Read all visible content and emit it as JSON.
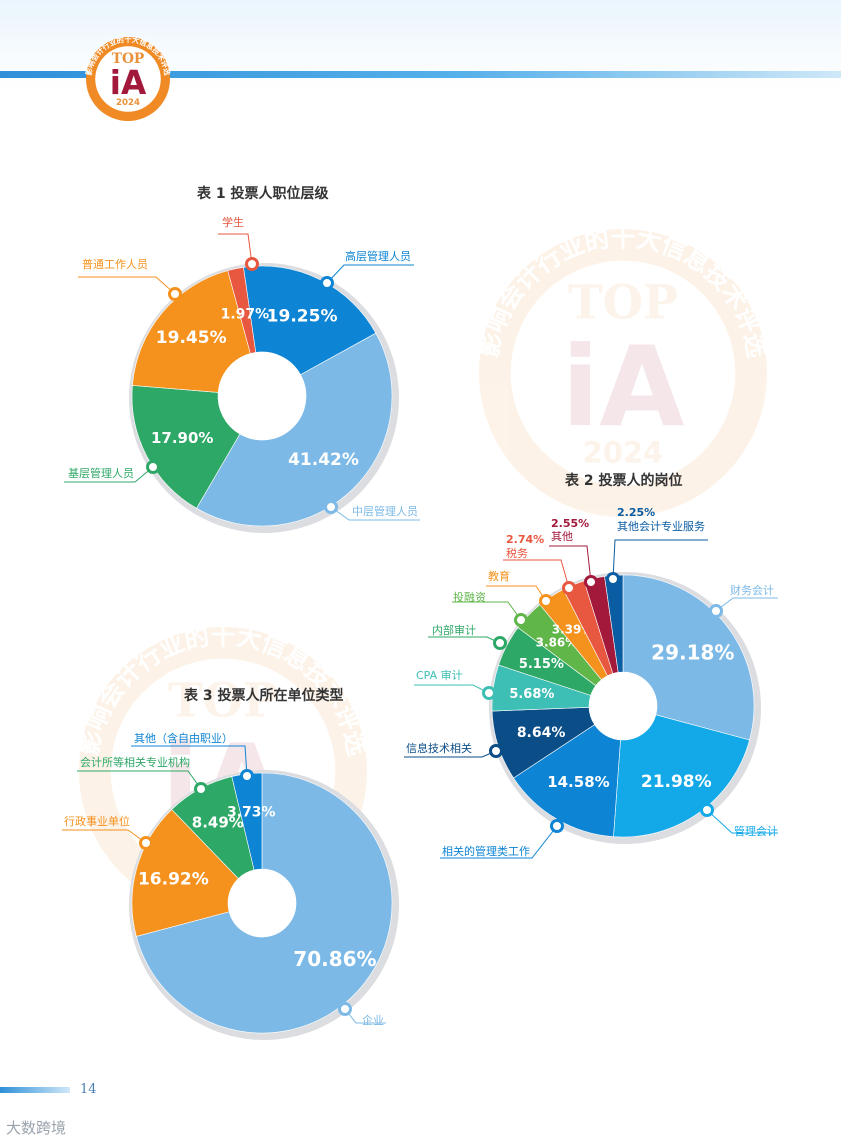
{
  "page": {
    "page_number": "14",
    "logo": {
      "top_text": "TOP",
      "main_text": "iA",
      "year": "2024",
      "ring_text": "影响会计行业的十大信息技术评选"
    },
    "watermark": {
      "top_text": "TOP",
      "main_text": "iA",
      "year": "2024",
      "ring_text": "影响会计行业的十大信息技术评选"
    },
    "corner_mark": "大数跨境"
  },
  "colors": {
    "blue_dark": "#0a5da3",
    "blue": "#0d84d4",
    "blue_light": "#7cb9e6",
    "cyan": "#13a9e8",
    "green": "#2ea867",
    "green_light": "#61b64a",
    "teal": "#3dbfb5",
    "navy": "#0a4d87",
    "orange": "#f5921e",
    "red_orange": "#e8573f",
    "crimson": "#a3193b"
  },
  "chart_data": [
    {
      "type": "pie",
      "title": "表 1 投票人职位层级",
      "slices": [
        {
          "label": "高层管理人员",
          "value": 19.25,
          "display": "19.25%",
          "color": "#0d84d4"
        },
        {
          "label": "中层管理人员",
          "value": 41.42,
          "display": "41.42%",
          "color": "#7cb9e6"
        },
        {
          "label": "基层管理人员",
          "value": 17.9,
          "display": "17.90%",
          "color": "#2ea867"
        },
        {
          "label": "普通工作人员",
          "value": 19.45,
          "display": "19.45%",
          "color": "#f5921e"
        },
        {
          "label": "学生",
          "value": 1.97,
          "display": "1.97%",
          "color": "#e8573f"
        }
      ]
    },
    {
      "type": "pie",
      "title": "表 2 投票人的岗位",
      "slices": [
        {
          "label": "财务会计",
          "value": 29.18,
          "display": "29.18%",
          "color": "#7cb9e6"
        },
        {
          "label": "管理会计",
          "value": 21.98,
          "display": "21.98%",
          "color": "#13a9e8"
        },
        {
          "label": "相关的管理类工作",
          "value": 14.58,
          "display": "14.58%",
          "color": "#0d84d4"
        },
        {
          "label": "信息技术相关",
          "value": 8.64,
          "display": "8.64%",
          "color": "#0a4d87"
        },
        {
          "label": "CPA 审计",
          "value": 5.68,
          "display": "5.68%",
          "color": "#3dbfb5"
        },
        {
          "label": "内部审计",
          "value": 5.15,
          "display": "5.15%",
          "color": "#2ea867"
        },
        {
          "label": "投融资",
          "value": 3.86,
          "display": "3.86%",
          "color": "#61b64a"
        },
        {
          "label": "教育",
          "value": 3.39,
          "display": "3.39%",
          "color": "#f5921e"
        },
        {
          "label": "税务",
          "value": 2.74,
          "display": "2.74%",
          "color": "#e8573f"
        },
        {
          "label": "其他",
          "value": 2.55,
          "display": "2.55%",
          "color": "#a3193b"
        },
        {
          "label": "其他会计专业服务",
          "value": 2.25,
          "display": "2.25%",
          "color": "#0a5da3"
        }
      ]
    },
    {
      "type": "pie",
      "title": "表 3 投票人所在单位类型",
      "slices": [
        {
          "label": "企业",
          "value": 70.86,
          "display": "70.86%",
          "color": "#7cb9e6"
        },
        {
          "label": "行政事业单位",
          "value": 16.92,
          "display": "16.92%",
          "color": "#f5921e"
        },
        {
          "label": "会计所等相关专业机构",
          "value": 8.49,
          "display": "8.49%",
          "color": "#2ea867"
        },
        {
          "label": "其他（含自由职业）",
          "value": 3.73,
          "display": "3.73%",
          "color": "#0d84d4"
        }
      ]
    }
  ]
}
